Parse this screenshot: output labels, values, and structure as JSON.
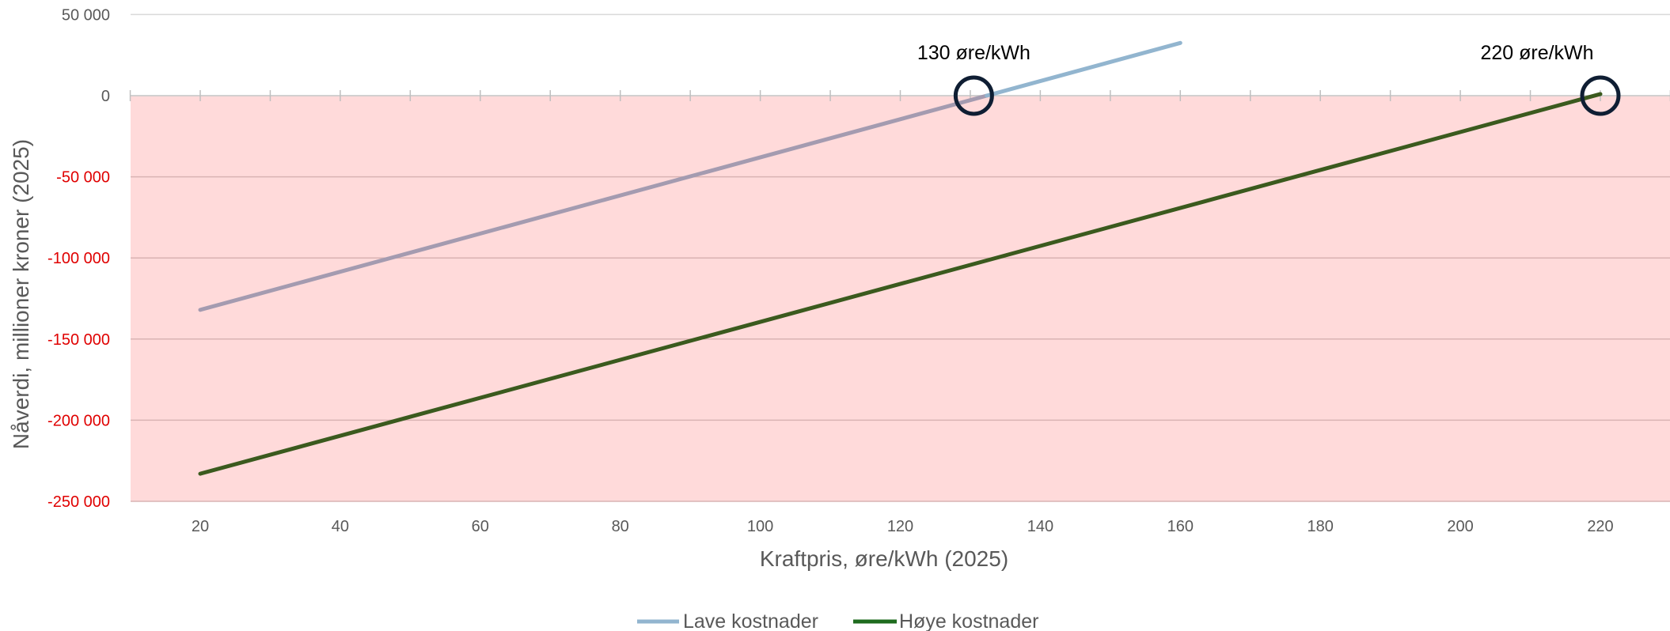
{
  "chart_data": {
    "type": "line",
    "xlabel": "Kraftpris, øre/kWh (2025)",
    "ylabel": "Nåverdi, millioner kroner (2025)",
    "xlim": [
      10,
      230
    ],
    "ylim": [
      -250000,
      50000
    ],
    "x_ticks": [
      20,
      40,
      60,
      80,
      100,
      120,
      140,
      160,
      180,
      200,
      220
    ],
    "y_ticks": [
      {
        "value": 50000,
        "label": "50 000"
      },
      {
        "value": 0,
        "label": "0"
      },
      {
        "value": -50000,
        "label": "-50 000"
      },
      {
        "value": -100000,
        "label": "-100 000"
      },
      {
        "value": -150000,
        "label": "-150 000"
      },
      {
        "value": -200000,
        "label": "-200 000"
      },
      {
        "value": -250000,
        "label": "-250 000"
      }
    ],
    "negative_region": true,
    "grid": "horizontal",
    "legend_position": "bottom-center",
    "series": [
      {
        "name": "Lave kostnader",
        "color": "#92b5cf",
        "x": [
          20,
          160
        ],
        "y": [
          -132000,
          32500
        ]
      },
      {
        "name": "Høye kostnader",
        "color": "#3b5a1e",
        "x": [
          20,
          220
        ],
        "y": [
          -233000,
          1000
        ]
      }
    ],
    "annotations": [
      {
        "text": "130 øre/kWh",
        "x": 130.5,
        "y": 0
      },
      {
        "text": "220 øre/kWh",
        "x": 220,
        "y": 0
      }
    ]
  },
  "colors": {
    "negative_fill": "#ffdada",
    "negative_tick_label": "#e00000",
    "positive_tick_label": "#595959",
    "overlap_line": "#a49bb0",
    "circle": "#0f1e33",
    "legend_hoye": "#1e6b1e"
  }
}
